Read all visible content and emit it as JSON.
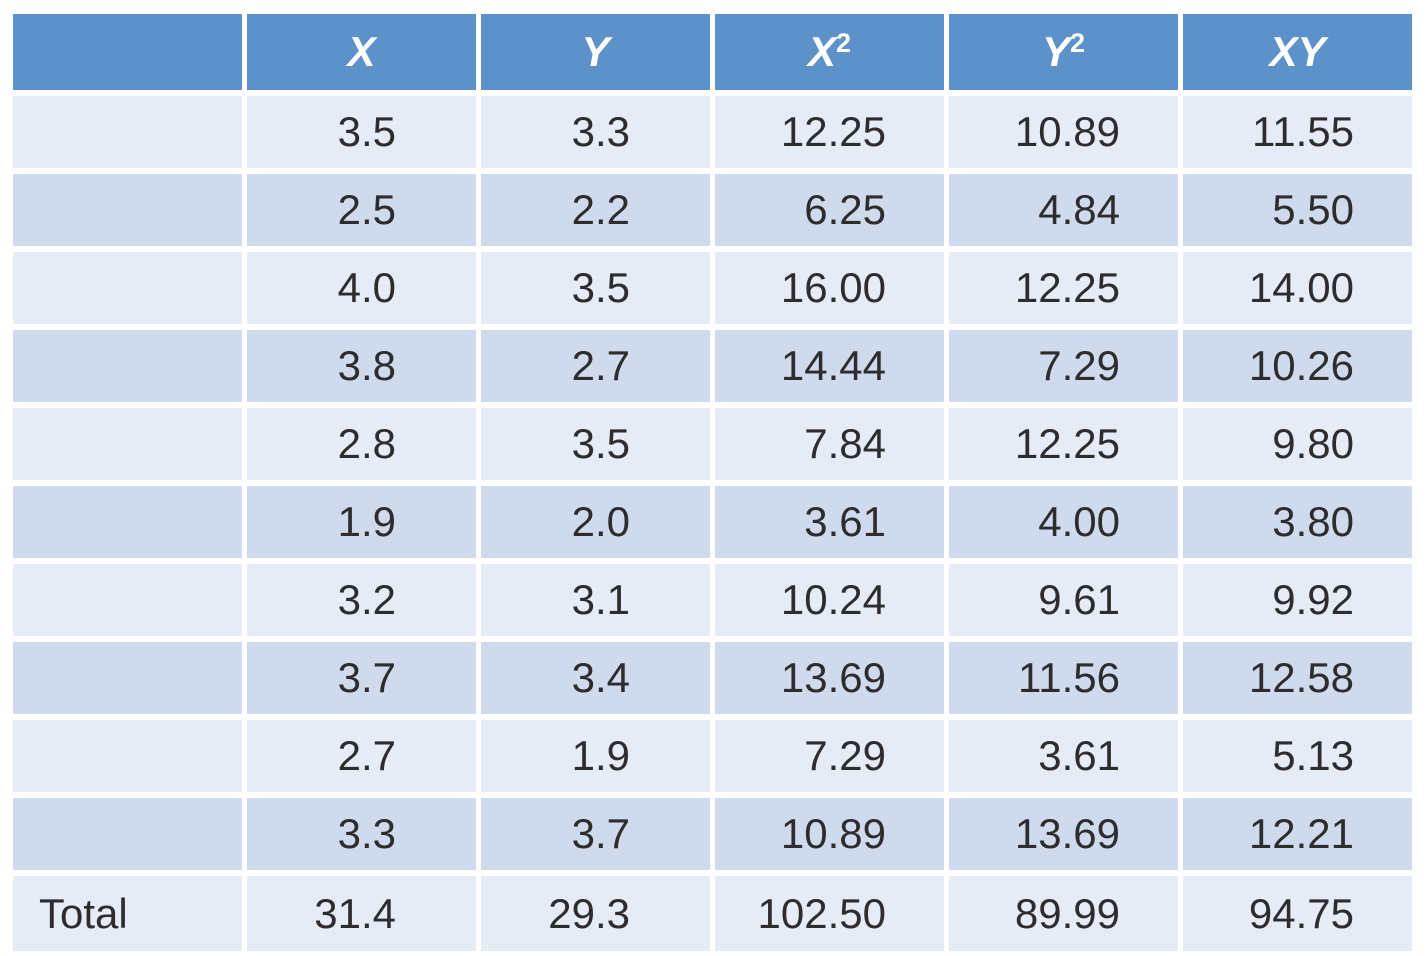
{
  "colors": {
    "header_bg": "#5C92C9",
    "header_text": "#FFFFFF",
    "row_light_bg": "#E5ECF6",
    "row_dark_bg": "#CFDAEC",
    "cell_text": "#2D2D2F"
  },
  "table": {
    "columns": [
      {
        "base": "",
        "sup": ""
      },
      {
        "base": "X",
        "sup": ""
      },
      {
        "base": "Y",
        "sup": ""
      },
      {
        "base": "X",
        "sup": "2"
      },
      {
        "base": "Y",
        "sup": "2"
      },
      {
        "base": "XY",
        "sup": ""
      }
    ],
    "rows": [
      [
        "",
        "3.5",
        "3.3",
        "12.25",
        "10.89",
        "11.55"
      ],
      [
        "",
        "2.5",
        "2.2",
        "6.25",
        "4.84",
        "5.50"
      ],
      [
        "",
        "4.0",
        "3.5",
        "16.00",
        "12.25",
        "14.00"
      ],
      [
        "",
        "3.8",
        "2.7",
        "14.44",
        "7.29",
        "10.26"
      ],
      [
        "",
        "2.8",
        "3.5",
        "7.84",
        "12.25",
        "9.80"
      ],
      [
        "",
        "1.9",
        "2.0",
        "3.61",
        "4.00",
        "3.80"
      ],
      [
        "",
        "3.2",
        "3.1",
        "10.24",
        "9.61",
        "9.92"
      ],
      [
        "",
        "3.7",
        "3.4",
        "13.69",
        "11.56",
        "12.58"
      ],
      [
        "",
        "2.7",
        "1.9",
        "7.29",
        "3.61",
        "5.13"
      ],
      [
        "",
        "3.3",
        "3.7",
        "10.89",
        "13.69",
        "12.21"
      ]
    ],
    "total": [
      "Total",
      "31.4",
      "29.3",
      "102.50",
      "89.99",
      "94.75"
    ]
  },
  "chart_data": {
    "type": "table",
    "title": "",
    "columns": [
      "",
      "X",
      "Y",
      "X^2",
      "Y^2",
      "XY"
    ],
    "x_values": [
      3.5,
      2.5,
      4.0,
      3.8,
      2.8,
      1.9,
      3.2,
      3.7,
      2.7,
      3.3
    ],
    "y_values": [
      3.3,
      2.2,
      3.5,
      2.7,
      3.5,
      2.0,
      3.1,
      3.4,
      1.9,
      3.7
    ],
    "x_squared": [
      12.25,
      6.25,
      16.0,
      14.44,
      7.84,
      3.61,
      10.24,
      13.69,
      7.29,
      10.89
    ],
    "y_squared": [
      10.89,
      4.84,
      12.25,
      7.29,
      12.25,
      4.0,
      9.61,
      11.56,
      3.61,
      13.69
    ],
    "xy_products": [
      11.55,
      5.5,
      14.0,
      10.26,
      9.8,
      3.8,
      9.92,
      12.58,
      5.13,
      12.21
    ],
    "totals": {
      "label": "Total",
      "sum_x": 31.4,
      "sum_y": 29.3,
      "sum_x_squared": 102.5,
      "sum_y_squared": 89.99,
      "sum_xy": 94.75
    }
  }
}
